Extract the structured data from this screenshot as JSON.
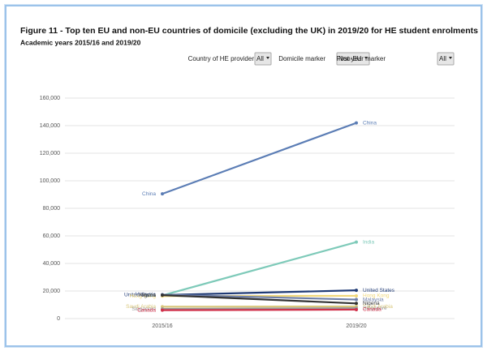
{
  "chart_data": {
    "type": "line",
    "title": "Figure 11 - Top ten EU and non-EU countries of domicile (excluding the UK) in 2019/20 for HE student enrolments",
    "subtitle": "Academic years 2015/16 and 2019/20",
    "categories": [
      "2015/16",
      "2019/20"
    ],
    "series": [
      {
        "name": "China",
        "color": "#5b7db5",
        "values": [
          90500,
          142000
        ]
      },
      {
        "name": "India",
        "color": "#7ecab9",
        "values": [
          16800,
          55500
        ]
      },
      {
        "name": "United States",
        "color": "#1f3a75",
        "values": [
          17100,
          20500
        ]
      },
      {
        "name": "Hong Kong",
        "color": "#f0d77a",
        "values": [
          16300,
          16500
        ]
      },
      {
        "name": "Malaysia",
        "color": "#6f7fa8",
        "values": [
          17400,
          13800
        ]
      },
      {
        "name": "Nigeria",
        "color": "#333333",
        "values": [
          17000,
          11000
        ]
      },
      {
        "name": "Saudi Arabia",
        "color": "#d8c67a",
        "values": [
          8600,
          8800
        ]
      },
      {
        "name": "Singapore",
        "color": "#9a9a9a",
        "values": [
          7000,
          7600
        ]
      },
      {
        "name": "Canada",
        "color": "#d0304a",
        "values": [
          6100,
          6500
        ]
      }
    ],
    "ylim": [
      0,
      160000
    ],
    "yticks": [
      0,
      {
        "value": 20000,
        "label": "20,000"
      },
      {
        "value": 40000,
        "label": "40,000"
      },
      {
        "value": 60000,
        "label": "60,000"
      },
      {
        "value": 80000,
        "label": "80,000"
      },
      {
        "value": 100000,
        "label": "100,000"
      },
      {
        "value": 120000,
        "label": "120,000"
      },
      {
        "value": 140000,
        "label": "140,000"
      },
      {
        "value": 160000,
        "label": "160,000"
      }
    ],
    "grid": true
  },
  "controls": [
    {
      "label": "Country of HE provider",
      "value": "All"
    },
    {
      "label": "Domicile marker",
      "value": "Non-EU"
    },
    {
      "label": "First year marker",
      "value": "All"
    }
  ]
}
